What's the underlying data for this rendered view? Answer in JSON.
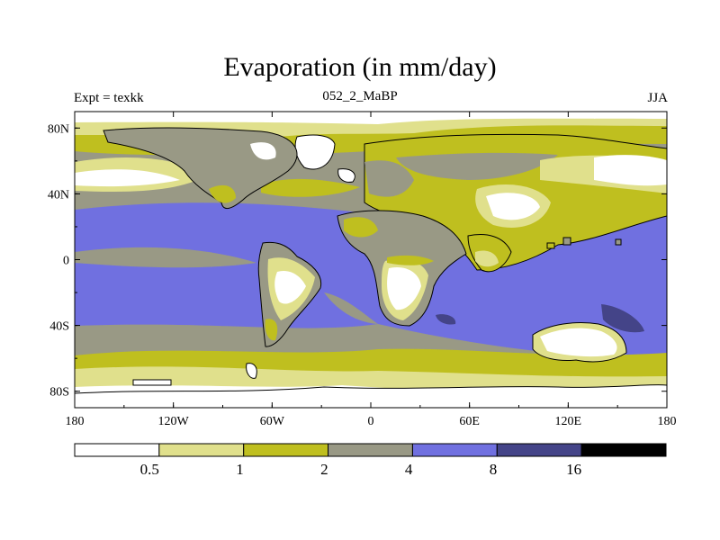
{
  "chart_data": {
    "type": "heatmap",
    "title": "Evaporation (in mm/day)",
    "left_label": "Expt = texkk",
    "center_label": "052_2_MaBP",
    "right_label": "JJA",
    "x_ticks": [
      "180",
      "120W",
      "60W",
      "0",
      "60E",
      "120E",
      "180"
    ],
    "x_range": [
      -180,
      180
    ],
    "y_ticks": [
      "80N",
      "40N",
      "0",
      "40S",
      "80S"
    ],
    "y_range": [
      -90,
      90
    ],
    "colorbar": {
      "levels": [
        "0.5",
        "1",
        "2",
        "4",
        "8",
        "16"
      ],
      "colors": [
        "#ffffff",
        "#e0e08c",
        "#bfbf1f",
        "#999985",
        "#7070e0",
        "#444488",
        "#000000"
      ]
    }
  }
}
